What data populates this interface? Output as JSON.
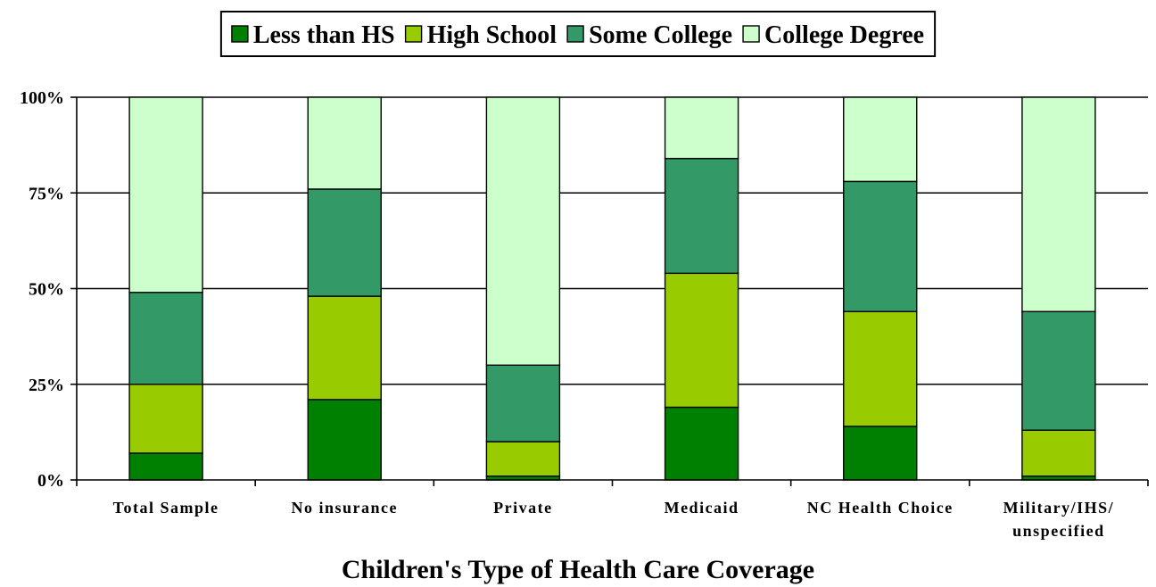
{
  "chart_data": {
    "type": "bar",
    "stacked": true,
    "categories": [
      [
        "Total Sample"
      ],
      [
        "No insurance"
      ],
      [
        "Private"
      ],
      [
        "Medicaid"
      ],
      [
        "NC Health Choice"
      ],
      [
        "Military/IHS/",
        "unspecified"
      ]
    ],
    "series": [
      {
        "name": "Less than HS",
        "color": "#008000",
        "values": [
          7,
          21,
          1,
          19,
          14,
          1
        ]
      },
      {
        "name": "High School",
        "color": "#99cc00",
        "values": [
          18,
          27,
          9,
          35,
          30,
          12
        ]
      },
      {
        "name": "Some College",
        "color": "#339966",
        "values": [
          24,
          28,
          20,
          30,
          34,
          31
        ]
      },
      {
        "name": "College Degree",
        "color": "#ccffcc",
        "values": [
          51,
          24,
          70,
          16,
          22,
          56
        ]
      }
    ],
    "yticks": [
      "0%",
      "25%",
      "50%",
      "75%",
      "100%"
    ],
    "ylim": [
      0,
      100
    ],
    "xlabel": "Children's Type of Health Care Coverage",
    "ylabel": "",
    "grid": true,
    "legend_position": "top"
  }
}
